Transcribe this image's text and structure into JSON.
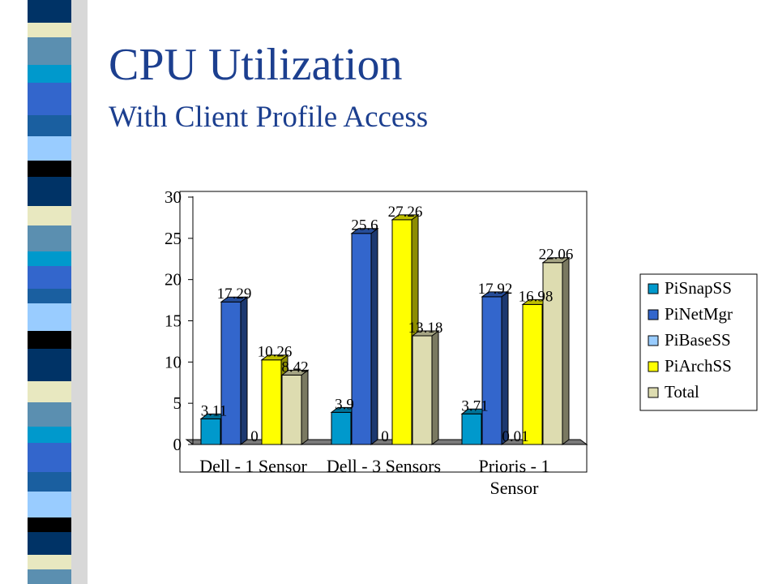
{
  "slide": {
    "title": "CPU Utilization",
    "subtitle": "With Client Profile Access"
  },
  "chart_data": {
    "type": "bar",
    "categories": [
      [
        "Dell - 1 Sensor"
      ],
      [
        "Dell - 3 Sensors"
      ],
      [
        "Prioris - 1",
        "Sensor"
      ]
    ],
    "series": [
      {
        "name": "PiSnapSS",
        "color": "#0099cc",
        "values": [
          3.11,
          3.9,
          3.71
        ],
        "labels": [
          "3.11",
          "3.9",
          "3.71"
        ]
      },
      {
        "name": "PiNetMgr",
        "color": "#3366cc",
        "values": [
          17.29,
          25.6,
          17.92
        ],
        "labels": [
          "17.29",
          "25.6",
          "17.92"
        ]
      },
      {
        "name": "PiBaseSS",
        "color": "#99ccff",
        "values": [
          0,
          0,
          0.01
        ],
        "labels": [
          "0",
          "0",
          "0.01"
        ]
      },
      {
        "name": "PiArchSS",
        "color": "#ffff00",
        "values": [
          10.26,
          27.26,
          16.98
        ],
        "labels": [
          "10.26",
          "27.26",
          "16.98"
        ]
      },
      {
        "name": "Total",
        "color": "#dddcb0",
        "values": [
          8.42,
          13.18,
          22.06
        ],
        "labels": [
          "8.42",
          "13.18",
          "22.06"
        ]
      }
    ],
    "yticks": [
      "0",
      "5",
      "10",
      "15",
      "20",
      "25",
      "30"
    ],
    "ylim": [
      0,
      30
    ],
    "grid": false,
    "legend": "right",
    "style": "3d-clustered-column"
  }
}
